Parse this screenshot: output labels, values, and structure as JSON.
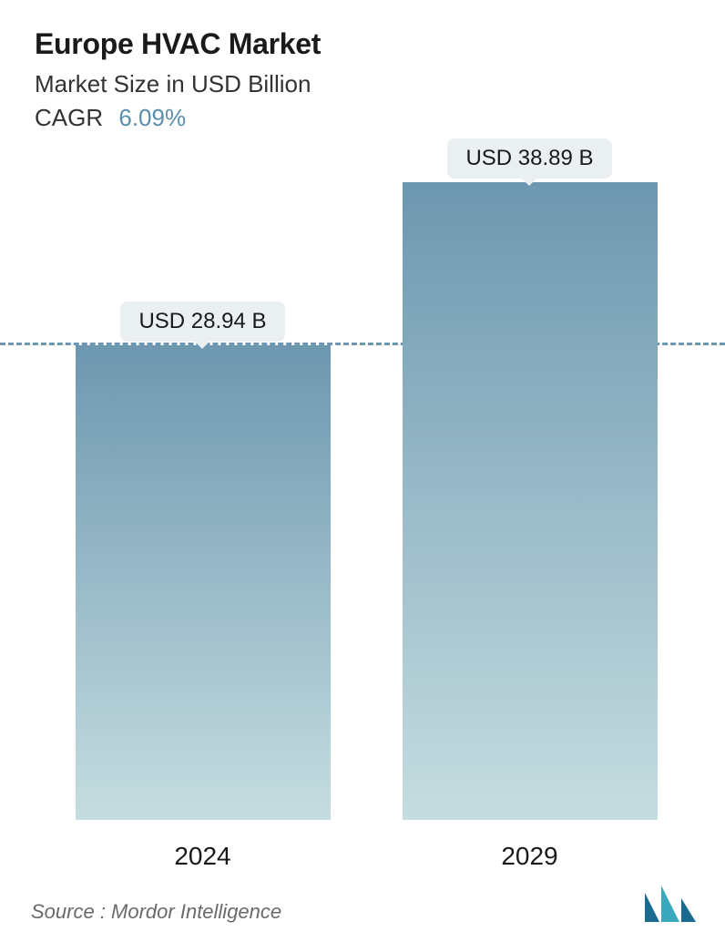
{
  "header": {
    "title": "Europe HVAC Market",
    "subtitle": "Market Size in USD Billion",
    "cagr_label": "CAGR",
    "cagr_value": "6.09%",
    "cagr_value_color": "#5a8fab",
    "title_color": "#1a1a1a",
    "title_fontsize": 32,
    "subtitle_fontsize": 26
  },
  "chart": {
    "type": "bar",
    "background_color": "#ffffff",
    "reference_line": {
      "value": 28.94,
      "color": "#6d97b0",
      "dash": "8 8",
      "width": 3
    },
    "ylim": [
      0,
      40
    ],
    "bar_width_ratio": 0.75,
    "bar_gradient_top": "#6d97b0",
    "bar_gradient_bottom": "#c5dde0",
    "badge_bg": "#eaf0f2",
    "badge_text_color": "#1a1a1a",
    "badge_fontsize": 24,
    "xlabel_fontsize": 28,
    "xlabel_color": "#1a1a1a",
    "bars": [
      {
        "category": "2024",
        "value": 28.94,
        "label": "USD 28.94 B"
      },
      {
        "category": "2029",
        "value": 38.89,
        "label": "USD 38.89 B"
      }
    ]
  },
  "footer": {
    "source_text": "Source :  Mordor Intelligence",
    "source_color": "#6a6a6a",
    "source_fontsize": 22,
    "logo_colors": {
      "bar1": "#1a6b8e",
      "bar2": "#3aa8bd",
      "bar3": "#1a6b8e"
    }
  }
}
